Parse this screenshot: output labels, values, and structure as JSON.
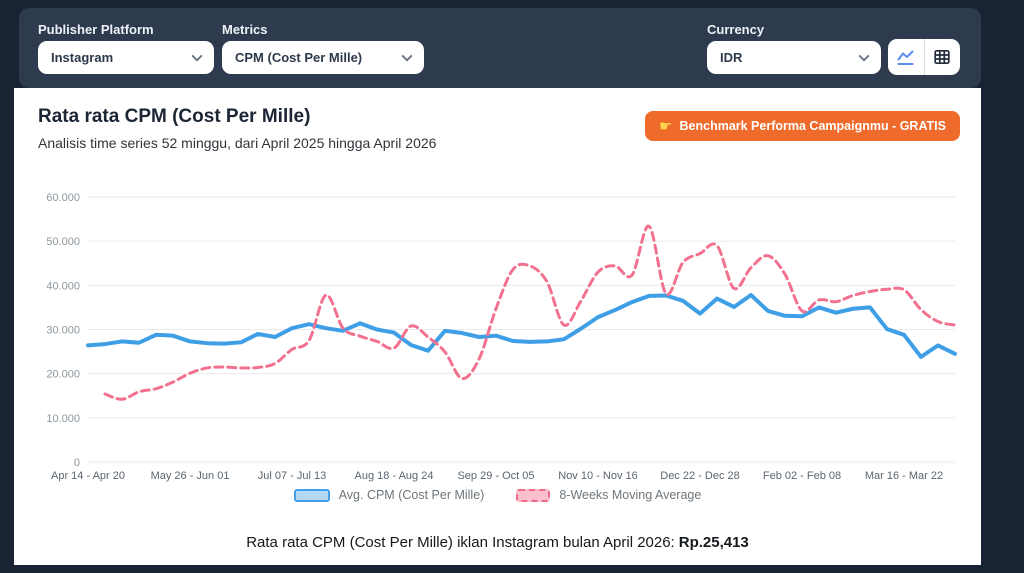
{
  "filters": {
    "publisher_platform": {
      "label": "Publisher Platform",
      "value": "Instagram"
    },
    "metrics": {
      "label": "Metrics",
      "value": "CPM (Cost Per Mille)"
    },
    "currency": {
      "label": "Currency",
      "value": "IDR"
    }
  },
  "view_toggle": {
    "chart_view_icon": "line-chart-icon",
    "table_view_icon": "table-icon"
  },
  "card": {
    "title": "Rata rata CPM (Cost Per Mille)",
    "subtitle": "Analisis time series 52 minggu, dari April 2025 hingga April 2026",
    "cta": {
      "icon": "☛",
      "label": "Benchmark Performa Campaignmu - GRATIS"
    },
    "footer": {
      "prefix": "Rata rata CPM (Cost Per Mille) iklan Instagram bulan April 2026:",
      "value": "Rp.25,413"
    }
  },
  "chart_data": {
    "type": "line",
    "title": "Rata rata CPM (Cost Per Mille)",
    "weeks_total": 52,
    "ylim": [
      0,
      60000
    ],
    "grid": true,
    "legend_position": "bottom",
    "y_ticks": [
      "0",
      "10.000",
      "20.000",
      "30.000",
      "40.000",
      "50.000",
      "60.000"
    ],
    "x_tick_weeks": [
      1,
      7,
      13,
      19,
      25,
      31,
      37,
      43,
      49
    ],
    "x_tick_labels": [
      "Apr 14 - Apr 20",
      "May 26 - Jun 01",
      "Jul 07 - Jul 13",
      "Aug 18 - Aug 24",
      "Sep 29 - Oct 05",
      "Nov 10 - Nov 16",
      "Dec 22 - Dec 28",
      "Feb 02 - Feb 08",
      "Mar 16 - Mar 22"
    ],
    "series": [
      {
        "name": "Avg. CPM (Cost Per Mille)",
        "color": "#3f9fe6",
        "style": "solid",
        "values": [
          26400,
          26700,
          27300,
          27000,
          28800,
          28600,
          27300,
          26900,
          26800,
          27100,
          29000,
          28300,
          30300,
          31200,
          30300,
          29700,
          31400,
          30000,
          29300,
          26500,
          25200,
          29700,
          29200,
          28300,
          28600,
          27400,
          27200,
          27300,
          27800,
          30200,
          32800,
          34400,
          36200,
          37600,
          37700,
          36500,
          33600,
          37000,
          35100,
          37800,
          34200,
          33100,
          33000,
          35000,
          33800,
          34700,
          35000,
          30100,
          28800,
          23800,
          26400,
          24500
        ]
      },
      {
        "name": "8-Weeks Moving Average",
        "color": "#f2718f",
        "style": "dashed",
        "values": [
          null,
          15400,
          14200,
          15900,
          16600,
          18100,
          20100,
          21300,
          21500,
          21300,
          21400,
          22300,
          25500,
          27500,
          37800,
          30300,
          28500,
          27300,
          25800,
          30800,
          28300,
          24900,
          18900,
          23300,
          34700,
          43600,
          44400,
          40800,
          31000,
          36500,
          43000,
          44400,
          42300,
          53400,
          38100,
          45200,
          47200,
          49000,
          39300,
          44000,
          46700,
          42500,
          34200,
          36700,
          36300,
          37700,
          38600,
          39100,
          39000,
          34500,
          31800,
          31000
        ]
      }
    ]
  }
}
